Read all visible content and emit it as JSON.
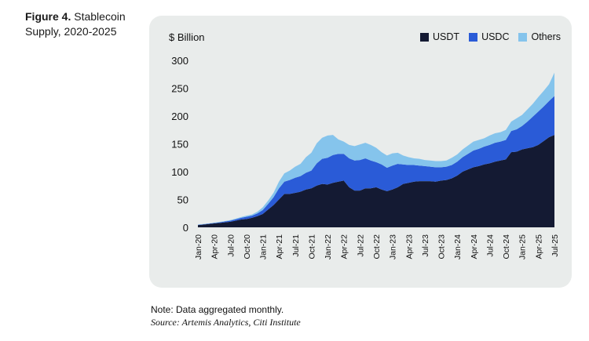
{
  "figure": {
    "number": "Figure 4.",
    "title_rest": " Stablecoin Supply, 2020-2025"
  },
  "footer": {
    "note": "Note: Data aggregated monthly.",
    "source": "Source: Artemis Analytics, Citi Institute"
  },
  "colors": {
    "usdt": "#141a33",
    "usdc": "#2a5bd7",
    "others": "#85c4ec"
  },
  "chart_data": {
    "type": "area",
    "stacked": true,
    "title": "Figure 4. Stablecoin Supply, 2020-2025",
    "unit_label": "$ Billion",
    "xlabel": "",
    "ylabel": "$ Billion",
    "ylim": [
      0,
      300
    ],
    "y_ticks": [
      0,
      50,
      100,
      150,
      200,
      250,
      300
    ],
    "grid": false,
    "legend_position": "top-right",
    "x_tick_labels": [
      "Jan-20",
      "Apr-20",
      "Jul-20",
      "Oct-20",
      "Jan-21",
      "Apr-21",
      "Jul-21",
      "Oct-21",
      "Jan-22",
      "Apr-22",
      "Jul-22",
      "Oct-22",
      "Jan-23",
      "Apr-23",
      "Jul-23",
      "Oct-23",
      "Jan-24",
      "Apr-24",
      "Jul-24",
      "Oct-24",
      "Jan-25",
      "Apr-25",
      "Jul-25"
    ],
    "x": [
      "Jan-20",
      "Feb-20",
      "Mar-20",
      "Apr-20",
      "May-20",
      "Jun-20",
      "Jul-20",
      "Aug-20",
      "Sep-20",
      "Oct-20",
      "Nov-20",
      "Dec-20",
      "Jan-21",
      "Feb-21",
      "Mar-21",
      "Apr-21",
      "May-21",
      "Jun-21",
      "Jul-21",
      "Aug-21",
      "Sep-21",
      "Oct-21",
      "Nov-21",
      "Dec-21",
      "Jan-22",
      "Feb-22",
      "Mar-22",
      "Apr-22",
      "May-22",
      "Jun-22",
      "Jul-22",
      "Aug-22",
      "Sep-22",
      "Oct-22",
      "Nov-22",
      "Dec-22",
      "Jan-23",
      "Feb-23",
      "Mar-23",
      "Apr-23",
      "May-23",
      "Jun-23",
      "Jul-23",
      "Aug-23",
      "Sep-23",
      "Oct-23",
      "Nov-23",
      "Dec-23",
      "Jan-24",
      "Feb-24",
      "Mar-24",
      "Apr-24",
      "May-24",
      "Jun-24",
      "Jul-24",
      "Aug-24",
      "Sep-24",
      "Oct-24",
      "Nov-24",
      "Dec-24",
      "Jan-25",
      "Feb-25",
      "Mar-25",
      "Apr-25",
      "May-25",
      "Jun-25",
      "Jul-25"
    ],
    "series": [
      {
        "name": "USDT",
        "values": [
          4,
          5,
          6,
          7,
          8,
          9,
          10,
          12,
          14,
          15,
          17,
          20,
          24,
          32,
          40,
          50,
          60,
          60,
          62,
          64,
          68,
          70,
          75,
          78,
          77,
          80,
          82,
          84,
          72,
          66,
          66,
          70,
          70,
          72,
          68,
          65,
          68,
          72,
          78,
          80,
          82,
          83,
          83,
          83,
          82,
          84,
          85,
          88,
          93,
          100,
          104,
          108,
          110,
          113,
          115,
          118,
          120,
          122,
          135,
          136,
          140,
          142,
          144,
          148,
          155,
          162,
          166
        ]
      },
      {
        "name": "USDC",
        "values": [
          0.5,
          0.5,
          0.6,
          0.8,
          1,
          1.5,
          2,
          2.5,
          3,
          4,
          4,
          5,
          7,
          10,
          14,
          20,
          22,
          25,
          27,
          28,
          30,
          32,
          40,
          45,
          48,
          50,
          50,
          48,
          52,
          54,
          55,
          54,
          50,
          45,
          45,
          42,
          43,
          42,
          35,
          32,
          30,
          28,
          27,
          26,
          26,
          24,
          24,
          24,
          25,
          26,
          28,
          30,
          31,
          32,
          33,
          34,
          34,
          35,
          38,
          40,
          42,
          48,
          55,
          60,
          62,
          65,
          70
        ]
      },
      {
        "name": "Others",
        "values": [
          0.5,
          0.5,
          0.5,
          0.6,
          0.7,
          0.8,
          1,
          1.2,
          1.5,
          2,
          2,
          3,
          5,
          6,
          8,
          12,
          15,
          17,
          20,
          22,
          28,
          32,
          36,
          38,
          40,
          36,
          26,
          22,
          24,
          26,
          28,
          28,
          28,
          26,
          22,
          22,
          22,
          20,
          16,
          14,
          12,
          12,
          11,
          11,
          11,
          11,
          11,
          13,
          13,
          14,
          15,
          16,
          16,
          15,
          17,
          17,
          17,
          18,
          17,
          20,
          20,
          22,
          23,
          26,
          28,
          30,
          42
        ]
      }
    ]
  }
}
